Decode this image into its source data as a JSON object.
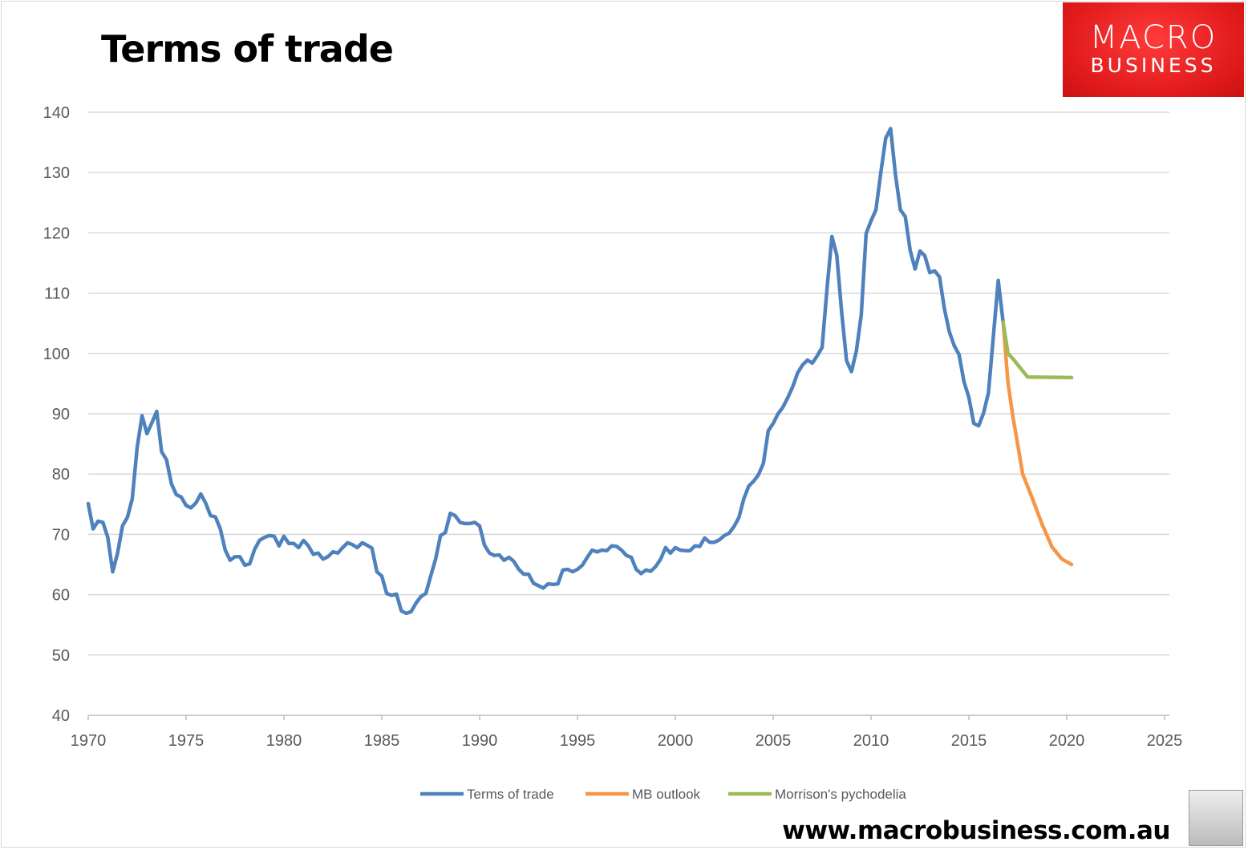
{
  "chart_data": {
    "type": "line",
    "title": "Terms of trade",
    "xlabel": "",
    "ylabel": "",
    "xlim": [
      1970,
      2025
    ],
    "ylim": [
      40,
      140
    ],
    "xticks": [
      1970,
      1975,
      1980,
      1985,
      1990,
      1995,
      2000,
      2005,
      2010,
      2015,
      2020,
      2025
    ],
    "yticks": [
      40,
      50,
      60,
      70,
      80,
      90,
      100,
      110,
      120,
      130,
      140
    ],
    "grid": true,
    "legend_position": "bottom",
    "series": [
      {
        "name": "Terms of trade",
        "color": "#4f81bd",
        "x_start": 1970.0,
        "x_end": 2016.75,
        "values": [
          75.1,
          70.9,
          72.2,
          72.0,
          69.5,
          63.8,
          66.9,
          71.4,
          72.8,
          75.9,
          84.4,
          89.7,
          86.7,
          88.5,
          90.4,
          83.7,
          82.4,
          78.4,
          76.6,
          76.2,
          74.8,
          74.4,
          75.2,
          76.7,
          75.2,
          73.1,
          72.9,
          70.9,
          67.4,
          65.7,
          66.3,
          66.3,
          64.9,
          65.1,
          67.5,
          69.0,
          69.5,
          69.8,
          69.7,
          68.1,
          69.7,
          68.5,
          68.5,
          67.8,
          69.0,
          68.1,
          66.7,
          66.9,
          65.9,
          66.3,
          67.1,
          66.9,
          67.8,
          68.6,
          68.3,
          67.8,
          68.6,
          68.2,
          67.7,
          63.8,
          63.1,
          60.2,
          59.9,
          60.1,
          57.3,
          56.9,
          57.2,
          58.6,
          59.7,
          60.2,
          63.1,
          65.9,
          69.8,
          70.3,
          73.5,
          73.1,
          72.0,
          71.8,
          71.8,
          72.0,
          71.4,
          68.2,
          66.9,
          66.5,
          66.6,
          65.7,
          66.2,
          65.5,
          64.2,
          63.4,
          63.4,
          61.9,
          61.5,
          61.1,
          61.8,
          61.7,
          61.8,
          64.1,
          64.2,
          63.8,
          64.2,
          64.9,
          66.2,
          67.4,
          67.1,
          67.4,
          67.3,
          68.1,
          68.0,
          67.4,
          66.5,
          66.2,
          64.2,
          63.5,
          64.1,
          63.9,
          64.7,
          65.9,
          67.8,
          66.9,
          67.8,
          67.4,
          67.3,
          67.3,
          68.1,
          68.0,
          69.4,
          68.7,
          68.7,
          69.1,
          69.8,
          70.2,
          71.3,
          72.8,
          75.9,
          78.0,
          78.8,
          79.9,
          81.8,
          87.2,
          88.4,
          90.0,
          91.1,
          92.7,
          94.5,
          96.8,
          98.1,
          98.9,
          98.4,
          99.6,
          101.0,
          110.7,
          119.4,
          116.3,
          106.8,
          98.8,
          97.0,
          100.4,
          106.4,
          119.9,
          122.0,
          123.8,
          130.0,
          135.7,
          137.3,
          129.6,
          123.8,
          122.7,
          117.1,
          114.0,
          117.0,
          116.2,
          113.4,
          113.7,
          112.7,
          107.4,
          103.6,
          101.3,
          99.8,
          95.3,
          92.7,
          88.4,
          88.0,
          90.1,
          93.5,
          102.8,
          112.1,
          105.2
        ]
      },
      {
        "name": "MB outlook",
        "color": "#f79646",
        "x": [
          2016.75,
          2017.0,
          2017.25,
          2017.5,
          2017.75,
          2018.25,
          2018.75,
          2019.25,
          2019.75,
          2020.25
        ],
        "values": [
          105.2,
          95.1,
          89.5,
          84.8,
          80.0,
          75.9,
          71.6,
          67.9,
          65.9,
          65.0
        ]
      },
      {
        "name": "Morrison's pychodelia",
        "color": "#9bbb59",
        "x": [
          2016.75,
          2017.0,
          2017.33,
          2017.5,
          2018.0,
          2020.25
        ],
        "values": [
          105.2,
          100.0,
          98.8,
          98.1,
          96.1,
          96.0
        ]
      }
    ]
  },
  "logo": {
    "line1": "MACRO",
    "line2": "BUSINESS"
  },
  "footer": {
    "url": "www.macrobusiness.com.au"
  }
}
